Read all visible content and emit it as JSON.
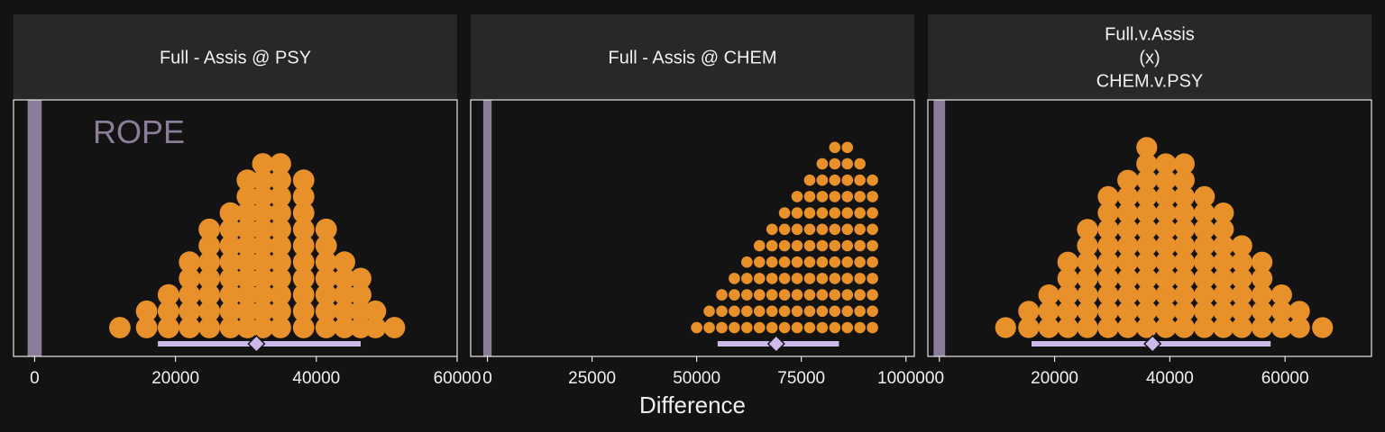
{
  "chart_data": {
    "type": "dotplot",
    "xlabel": "Difference",
    "rope_label": "ROPE",
    "colors": {
      "background": "#131313",
      "strip": "#282828",
      "dots": "#e8902a",
      "rope": "#8b7d98",
      "interval": "#cdb9ec",
      "border": "#e6e6e6"
    },
    "panels": [
      {
        "title": [
          "Full - Assis @ PSY"
        ],
        "xlim": [
          -3000,
          60000
        ],
        "ticks": [
          0,
          20000,
          40000,
          60000
        ],
        "tick_labels": [
          "0",
          "20000",
          "40000",
          "60000"
        ],
        "rope": [
          -1000,
          1000
        ],
        "show_rope_label": true,
        "interval": [
          17500,
          46300
        ],
        "point_estimate": 31500,
        "dot_diameter": 3050,
        "bins": [
          {
            "x": 12100,
            "n": 1
          },
          {
            "x": 15900,
            "n": 2
          },
          {
            "x": 19000,
            "n": 3
          },
          {
            "x": 22000,
            "n": 5
          },
          {
            "x": 24800,
            "n": 7
          },
          {
            "x": 27800,
            "n": 8
          },
          {
            "x": 30200,
            "n": 10
          },
          {
            "x": 32400,
            "n": 11
          },
          {
            "x": 34900,
            "n": 11
          },
          {
            "x": 38200,
            "n": 10
          },
          {
            "x": 41400,
            "n": 7
          },
          {
            "x": 44000,
            "n": 5
          },
          {
            "x": 46300,
            "n": 4
          },
          {
            "x": 48400,
            "n": 2
          },
          {
            "x": 51100,
            "n": 1
          }
        ]
      },
      {
        "title": [
          "Full - Assis @ CHEM"
        ],
        "xlim": [
          -4000,
          102000
        ],
        "ticks": [
          0,
          25000,
          50000,
          75000,
          100000
        ],
        "tick_labels": [
          "0",
          "25000",
          "50000",
          "75000",
          "100000"
        ],
        "rope": [
          -1000,
          1000
        ],
        "show_rope_label": false,
        "interval": [
          55000,
          84000
        ],
        "point_estimate": 69000,
        "dot_diameter": 2720,
        "bins": [
          {
            "x": 50000,
            "n": 1
          },
          {
            "x": 53000,
            "n": 2
          },
          {
            "x": 56000,
            "n": 3
          },
          {
            "x": 59000,
            "n": 4
          },
          {
            "x": 62000,
            "n": 5
          },
          {
            "x": 65000,
            "n": 6
          },
          {
            "x": 68000,
            "n": 7
          },
          {
            "x": 71000,
            "n": 8
          },
          {
            "x": 74000,
            "n": 9
          },
          {
            "x": 77000,
            "n": 10
          },
          {
            "x": 80000,
            "n": 11
          },
          {
            "x": 83000,
            "n": 12
          },
          {
            "x": 86000,
            "n": 12
          },
          {
            "x": 89000,
            "n": 11
          },
          {
            "x": 92000,
            "n": 10
          }
        ]
      },
      {
        "title": [
          "Full.v.Assis",
          "(x)",
          "CHEM.v.PSY"
        ],
        "xlim": [
          -2000,
          75000
        ],
        "ticks": [
          0,
          20000,
          40000,
          60000
        ],
        "tick_labels": [
          "0",
          "20000",
          "40000",
          "60000"
        ],
        "rope": [
          -1000,
          1000
        ],
        "show_rope_label": false,
        "interval": [
          16000,
          57500
        ],
        "point_estimate": 37000,
        "dot_diameter": 3630,
        "bins": [
          {
            "x": 11500,
            "n": 1
          },
          {
            "x": 15500,
            "n": 2
          },
          {
            "x": 19000,
            "n": 3
          },
          {
            "x": 22300,
            "n": 5
          },
          {
            "x": 25700,
            "n": 7
          },
          {
            "x": 29300,
            "n": 9
          },
          {
            "x": 32700,
            "n": 10
          },
          {
            "x": 36000,
            "n": 12
          },
          {
            "x": 39300,
            "n": 11
          },
          {
            "x": 42500,
            "n": 11
          },
          {
            "x": 46000,
            "n": 9
          },
          {
            "x": 49300,
            "n": 8
          },
          {
            "x": 52500,
            "n": 6
          },
          {
            "x": 56000,
            "n": 5
          },
          {
            "x": 59400,
            "n": 3
          },
          {
            "x": 62500,
            "n": 2
          },
          {
            "x": 66500,
            "n": 1
          }
        ]
      }
    ]
  }
}
